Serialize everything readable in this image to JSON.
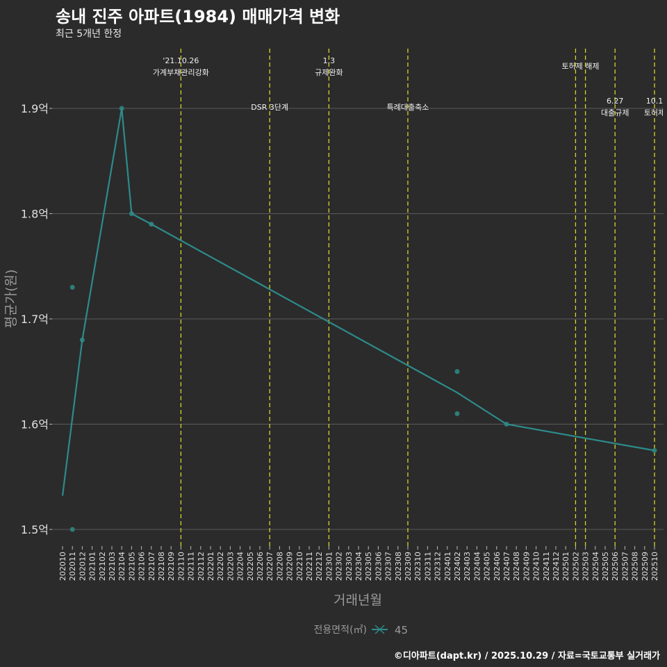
{
  "title": "송내 진주 아파트(1984) 매매가격 변화",
  "subtitle": "최근 5개년 한정",
  "caption": "©디아파트(dapt.kr) / 2025.10.29 / 자료=국토교통부 실거래가",
  "colors": {
    "background": "#2b2b2b",
    "line": "#2e8b8b",
    "point": "#2e7d78",
    "vline": "#d4d42a",
    "grid": "#5a5a5a",
    "text": "#e0e0e0"
  },
  "chart_data": {
    "type": "line",
    "xlabel": "거래년월",
    "ylabel": "평균가(원)",
    "ylim": [
      1.48,
      1.96
    ],
    "y_ticks": [
      1.5,
      1.6,
      1.7,
      1.8,
      1.9
    ],
    "y_tick_labels": [
      "1.5억",
      "1.6억",
      "1.7억",
      "1.8억",
      "1.9억"
    ],
    "grid": true,
    "x_categories": [
      "202010",
      "202011",
      "202012",
      "202101",
      "202102",
      "202103",
      "202104",
      "202105",
      "202106",
      "202107",
      "202108",
      "202109",
      "202110",
      "202111",
      "202112",
      "202201",
      "202202",
      "202203",
      "202204",
      "202205",
      "202206",
      "202207",
      "202208",
      "202209",
      "202210",
      "202211",
      "202212",
      "202301",
      "202302",
      "202303",
      "202304",
      "202305",
      "202306",
      "202307",
      "202308",
      "202309",
      "202310",
      "202311",
      "202312",
      "202401",
      "202402",
      "202403",
      "202404",
      "202405",
      "202406",
      "202407",
      "202408",
      "202409",
      "202410",
      "202411",
      "202412",
      "202501",
      "202502",
      "202503",
      "202504",
      "202505",
      "202506",
      "202507",
      "202508",
      "202509",
      "202510"
    ],
    "legend": {
      "title": "전용면적(㎡)",
      "entries": [
        "45"
      ],
      "position": "bottom"
    },
    "series": [
      {
        "name": "45",
        "line": [
          {
            "x": "202010",
            "y": 1.532
          },
          {
            "x": "202012",
            "y": 1.68
          },
          {
            "x": "202104",
            "y": 1.9
          },
          {
            "x": "202105",
            "y": 1.8
          },
          {
            "x": "202107",
            "y": 1.79
          },
          {
            "x": "202402",
            "y": 1.63
          },
          {
            "x": "202407",
            "y": 1.6
          },
          {
            "x": "202510",
            "y": 1.575
          }
        ],
        "points": [
          {
            "x": "202011",
            "y": 1.73
          },
          {
            "x": "202011",
            "y": 1.5
          },
          {
            "x": "202012",
            "y": 1.68
          },
          {
            "x": "202104",
            "y": 1.9
          },
          {
            "x": "202105",
            "y": 1.8
          },
          {
            "x": "202107",
            "y": 1.79
          },
          {
            "x": "202402",
            "y": 1.65
          },
          {
            "x": "202402",
            "y": 1.61
          },
          {
            "x": "202407",
            "y": 1.6
          },
          {
            "x": "202510",
            "y": 1.575
          }
        ]
      }
    ],
    "annotations": [
      {
        "x": "202110",
        "lines": [
          "'21.10.26",
          "가계부채관리강화"
        ]
      },
      {
        "x": "202207",
        "lines": [
          "DSR 3단계"
        ]
      },
      {
        "x": "202301",
        "lines": [
          "1.3",
          "규제완화"
        ]
      },
      {
        "x": "202309",
        "lines": [
          "특례대출축소"
        ]
      },
      {
        "x": "202502",
        "lines": []
      },
      {
        "x": "202503",
        "lines": [
          "토허제 해제"
        ]
      },
      {
        "x": "202506",
        "lines": [
          "6.27",
          "대출규제"
        ]
      },
      {
        "x": "202510",
        "lines": [
          "10.1",
          "토허제"
        ]
      }
    ]
  }
}
